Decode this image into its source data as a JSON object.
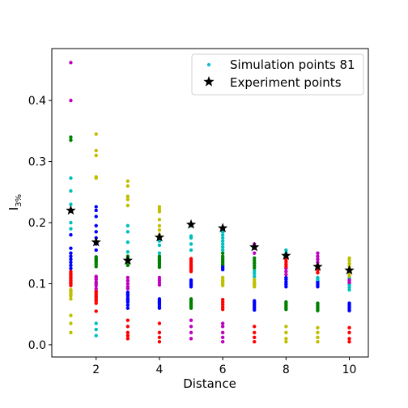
{
  "chart_data": {
    "type": "scatter",
    "xlabel": "Distance",
    "ylabel_main": "I",
    "ylabel_sub": "3%",
    "xlim": [
      0.6,
      10.6
    ],
    "ylim": [
      -0.02,
      0.485
    ],
    "x_ticks": [
      2,
      4,
      6,
      8,
      10
    ],
    "y_ticks": [
      0.0,
      0.1,
      0.2,
      0.3,
      0.4
    ],
    "x_tick_labels": [
      "2",
      "4",
      "6",
      "8",
      "10"
    ],
    "y_tick_labels": [
      "0.0",
      "0.1",
      "0.2",
      "0.3",
      "0.4"
    ],
    "legend": {
      "placement": "top-right",
      "entries": [
        {
          "label": "Simulation points 81",
          "marker": "dot",
          "color": "#17becf"
        },
        {
          "label": "Experiment points",
          "marker": "star",
          "color": "#000000"
        }
      ]
    },
    "simulation_groups": [
      {
        "x": 1.2,
        "color": "#bfbf00",
        "y": [
          0.02,
          0.035,
          0.048,
          0.075,
          0.08,
          0.082,
          0.085,
          0.088,
          0.09
        ]
      },
      {
        "x": 1.2,
        "color": "#ff0000",
        "y": [
          0.097,
          0.1,
          0.102,
          0.105,
          0.108,
          0.11,
          0.112,
          0.115,
          0.117,
          0.12
        ]
      },
      {
        "x": 1.2,
        "color": "#0000ff",
        "y": [
          0.125,
          0.13,
          0.135,
          0.14,
          0.145,
          0.15,
          0.158,
          0.18
        ]
      },
      {
        "x": 1.2,
        "color": "#00bfbf",
        "y": [
          0.19,
          0.2,
          0.23,
          0.252,
          0.273
        ]
      },
      {
        "x": 1.2,
        "color": "#008000",
        "y": [
          0.335,
          0.34
        ]
      },
      {
        "x": 1.2,
        "color": "#bf00bf",
        "y": [
          0.4,
          0.462
        ]
      },
      {
        "x": 2,
        "color": "#00bfbf",
        "y": [
          0.015,
          0.025,
          0.035
        ]
      },
      {
        "x": 2,
        "color": "#ff0000",
        "y": [
          0.055,
          0.068,
          0.072,
          0.075,
          0.078,
          0.08,
          0.083,
          0.086,
          0.088
        ]
      },
      {
        "x": 2,
        "color": "#bf00bf",
        "y": [
          0.092,
          0.097,
          0.1,
          0.103,
          0.107,
          0.11,
          0.112
        ]
      },
      {
        "x": 2,
        "color": "#008000",
        "y": [
          0.128,
          0.132,
          0.135,
          0.138,
          0.14,
          0.142,
          0.144
        ]
      },
      {
        "x": 2,
        "color": "#0000ff",
        "y": [
          0.155,
          0.165,
          0.175,
          0.185,
          0.195,
          0.21,
          0.22,
          0.226
        ]
      },
      {
        "x": 2,
        "color": "#bfbf00",
        "y": [
          0.273,
          0.275,
          0.31,
          0.318,
          0.345
        ]
      },
      {
        "x": 3,
        "color": "#ff0000",
        "y": [
          0.01,
          0.015,
          0.02,
          0.03,
          0.04
        ]
      },
      {
        "x": 3,
        "color": "#0000ff",
        "y": [
          0.06,
          0.065,
          0.07,
          0.073,
          0.076,
          0.08,
          0.083,
          0.086
        ]
      },
      {
        "x": 3,
        "color": "#bf00bf",
        "y": [
          0.092,
          0.095,
          0.1,
          0.105,
          0.11
        ]
      },
      {
        "x": 3,
        "color": "#008000",
        "y": [
          0.13,
          0.133,
          0.136,
          0.139,
          0.142,
          0.145
        ]
      },
      {
        "x": 3,
        "color": "#00bfbf",
        "y": [
          0.152,
          0.168,
          0.185,
          0.195
        ]
      },
      {
        "x": 3,
        "color": "#bfbf00",
        "y": [
          0.228,
          0.238,
          0.243,
          0.26,
          0.268
        ]
      },
      {
        "x": 4,
        "color": "#ff0000",
        "y": [
          0.005,
          0.012,
          0.02,
          0.035
        ]
      },
      {
        "x": 4,
        "color": "#0000ff",
        "y": [
          0.06,
          0.062,
          0.065,
          0.068,
          0.07,
          0.072,
          0.075
        ]
      },
      {
        "x": 4,
        "color": "#bf00bf",
        "y": [
          0.098,
          0.102,
          0.106,
          0.11
        ]
      },
      {
        "x": 4,
        "color": "#008000",
        "y": [
          0.127,
          0.13,
          0.133,
          0.136,
          0.138,
          0.14,
          0.142,
          0.145
        ]
      },
      {
        "x": 4,
        "color": "#00bfbf",
        "y": [
          0.15,
          0.163,
          0.17
        ]
      },
      {
        "x": 4,
        "color": "#bfbf00",
        "y": [
          0.18,
          0.188,
          0.195,
          0.205,
          0.218,
          0.222,
          0.226
        ]
      },
      {
        "x": 5,
        "color": "#bf00bf",
        "y": [
          0.01,
          0.02,
          0.03,
          0.04
        ]
      },
      {
        "x": 5,
        "color": "#008000",
        "y": [
          0.06,
          0.063,
          0.066,
          0.069,
          0.072,
          0.075
        ]
      },
      {
        "x": 5,
        "color": "#0000ff",
        "y": [
          0.095,
          0.098,
          0.1,
          0.103,
          0.106
        ]
      },
      {
        "x": 5,
        "color": "#ff0000",
        "y": [
          0.12,
          0.123,
          0.126,
          0.129,
          0.132,
          0.135,
          0.138,
          0.141
        ]
      },
      {
        "x": 5,
        "color": "#00bfbf",
        "y": [
          0.155,
          0.165,
          0.175,
          0.178,
          0.195
        ]
      },
      {
        "x": 6,
        "color": "#bf00bf",
        "y": [
          0.005,
          0.012,
          0.02,
          0.03,
          0.035
        ]
      },
      {
        "x": 6,
        "color": "#ff0000",
        "y": [
          0.058,
          0.062,
          0.066,
          0.07,
          0.074
        ]
      },
      {
        "x": 6,
        "color": "#bfbf00",
        "y": [
          0.097,
          0.1,
          0.103,
          0.106,
          0.11
        ]
      },
      {
        "x": 6,
        "color": "#0000ff",
        "y": [
          0.123,
          0.126,
          0.129
        ]
      },
      {
        "x": 6,
        "color": "#008000",
        "y": [
          0.132,
          0.135,
          0.138,
          0.141,
          0.145,
          0.15
        ]
      },
      {
        "x": 6,
        "color": "#00bfbf",
        "y": [
          0.155,
          0.16,
          0.165,
          0.17,
          0.175,
          0.18,
          0.185
        ]
      },
      {
        "x": 7,
        "color": "#ff0000",
        "y": [
          0.005,
          0.012,
          0.02,
          0.03
        ]
      },
      {
        "x": 7,
        "color": "#0000ff",
        "y": [
          0.057,
          0.06,
          0.063,
          0.066,
          0.069,
          0.072
        ]
      },
      {
        "x": 7,
        "color": "#bfbf00",
        "y": [
          0.095,
          0.098,
          0.1,
          0.103,
          0.107
        ]
      },
      {
        "x": 7,
        "color": "#00bfbf",
        "y": [
          0.112,
          0.117,
          0.121
        ]
      },
      {
        "x": 7,
        "color": "#008000",
        "y": [
          0.126,
          0.13,
          0.134,
          0.138,
          0.142
        ]
      },
      {
        "x": 7,
        "color": "#bf00bf",
        "y": [
          0.15,
          0.158,
          0.165
        ]
      },
      {
        "x": 8,
        "color": "#bfbf00",
        "y": [
          0.005,
          0.01,
          0.02,
          0.03
        ]
      },
      {
        "x": 8,
        "color": "#008000",
        "y": [
          0.058,
          0.061,
          0.064,
          0.067,
          0.07
        ]
      },
      {
        "x": 8,
        "color": "#0000ff",
        "y": [
          0.095,
          0.099,
          0.103,
          0.107,
          0.11
        ]
      },
      {
        "x": 8,
        "color": "#bf00bf",
        "y": [
          0.115,
          0.12,
          0.125
        ]
      },
      {
        "x": 8,
        "color": "#ff0000",
        "y": [
          0.128,
          0.132,
          0.136,
          0.14
        ]
      },
      {
        "x": 8,
        "color": "#00bfbf",
        "y": [
          0.145,
          0.15,
          0.155
        ]
      },
      {
        "x": 9,
        "color": "#bfbf00",
        "y": [
          0.005,
          0.012,
          0.02,
          0.028
        ]
      },
      {
        "x": 9,
        "color": "#008000",
        "y": [
          0.056,
          0.059,
          0.062,
          0.065,
          0.068
        ]
      },
      {
        "x": 9,
        "color": "#0000ff",
        "y": [
          0.095,
          0.098,
          0.101,
          0.104
        ]
      },
      {
        "x": 9,
        "color": "#00bfbf",
        "y": [
          0.107,
          0.11
        ]
      },
      {
        "x": 9,
        "color": "#ff0000",
        "y": [
          0.118,
          0.122,
          0.126,
          0.13
        ]
      },
      {
        "x": 9,
        "color": "#bf00bf",
        "y": [
          0.135,
          0.14,
          0.145,
          0.15
        ]
      },
      {
        "x": 10,
        "color": "#ff0000",
        "y": [
          0.005,
          0.01,
          0.02,
          0.028
        ]
      },
      {
        "x": 10,
        "color": "#0000ff",
        "y": [
          0.056,
          0.059,
          0.062,
          0.065,
          0.068
        ]
      },
      {
        "x": 10,
        "color": "#00bfbf",
        "y": [
          0.09,
          0.094,
          0.098,
          0.1,
          0.103,
          0.106,
          0.109
        ]
      },
      {
        "x": 10,
        "color": "#bf00bf",
        "y": [
          0.102,
          0.106
        ]
      },
      {
        "x": 10,
        "color": "#bfbf00",
        "y": [
          0.113,
          0.118,
          0.123,
          0.128,
          0.133,
          0.138,
          0.142
        ]
      }
    ],
    "experiment_points": [
      {
        "x": 1.2,
        "y": 0.22
      },
      {
        "x": 2,
        "y": 0.168
      },
      {
        "x": 3,
        "y": 0.138
      },
      {
        "x": 4,
        "y": 0.176
      },
      {
        "x": 5,
        "y": 0.197
      },
      {
        "x": 6,
        "y": 0.191
      },
      {
        "x": 7,
        "y": 0.16
      },
      {
        "x": 8,
        "y": 0.146
      },
      {
        "x": 9,
        "y": 0.128
      },
      {
        "x": 10,
        "y": 0.122
      }
    ]
  }
}
